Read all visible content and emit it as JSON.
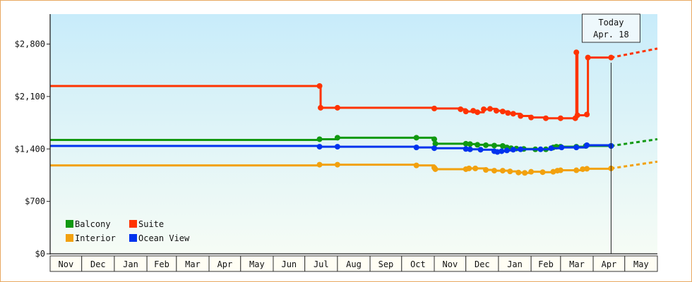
{
  "chart_data": {
    "type": "line",
    "x_type": "date",
    "y_ticks": [
      {
        "value": 0,
        "label": "$0"
      },
      {
        "value": 700,
        "label": "$700"
      },
      {
        "value": 1400,
        "label": "$1,400"
      },
      {
        "value": 2100,
        "label": "$2,100"
      },
      {
        "value": 2800,
        "label": "$2,800"
      }
    ],
    "ylim": [
      0,
      3200
    ],
    "xlim": [
      "2021-11-01",
      "2023-06-01"
    ],
    "x_tick_labels": [
      "Nov",
      "Dec",
      "Jan",
      "Feb",
      "Mar",
      "Apr",
      "May",
      "Jun",
      "Jul",
      "Aug",
      "Sep",
      "Oct",
      "Nov",
      "Dec",
      "Jan",
      "Feb",
      "Mar",
      "Apr",
      "May"
    ],
    "grid": false,
    "legend_position": "bottom-left",
    "today": {
      "date": "2023-04-18",
      "line1": "Today",
      "line2": "Apr. 18"
    },
    "series": [
      {
        "name": "Balcony",
        "color": "#119911",
        "points": [
          [
            "2021-11-01",
            1520
          ],
          [
            "2022-07-15",
            1530
          ],
          [
            "2022-08-01",
            1550
          ],
          [
            "2022-10-15",
            1550
          ],
          [
            "2022-11-01",
            1530
          ],
          [
            "2022-11-02",
            1470
          ],
          [
            "2022-12-01",
            1470
          ],
          [
            "2022-12-05",
            1465
          ],
          [
            "2022-12-12",
            1455
          ],
          [
            "2022-12-20",
            1450
          ],
          [
            "2022-12-28",
            1445
          ],
          [
            "2023-01-05",
            1440
          ],
          [
            "2023-01-09",
            1420
          ],
          [
            "2023-01-13",
            1410
          ],
          [
            "2023-01-18",
            1405
          ],
          [
            "2023-01-25",
            1400
          ],
          [
            "2023-02-05",
            1395
          ],
          [
            "2023-02-15",
            1395
          ],
          [
            "2023-02-22",
            1420
          ],
          [
            "2023-02-25",
            1430
          ],
          [
            "2023-03-01",
            1430
          ],
          [
            "2023-03-16",
            1430
          ],
          [
            "2023-03-25",
            1440
          ],
          [
            "2023-04-18",
            1440
          ]
        ],
        "forecast": [
          [
            "2023-04-18",
            1440
          ],
          [
            "2023-06-01",
            1530
          ]
        ]
      },
      {
        "name": "Suite",
        "color": "#ff3300",
        "points": [
          [
            "2021-11-01",
            2240
          ],
          [
            "2022-07-15",
            2240
          ],
          [
            "2022-07-16",
            1950
          ],
          [
            "2022-08-01",
            1950
          ],
          [
            "2022-11-01",
            1940
          ],
          [
            "2022-11-26",
            1930
          ],
          [
            "2022-12-01",
            1900
          ],
          [
            "2022-12-08",
            1910
          ],
          [
            "2022-12-12",
            1890
          ],
          [
            "2022-12-18",
            1930
          ],
          [
            "2022-12-24",
            1935
          ],
          [
            "2022-12-30",
            1910
          ],
          [
            "2023-01-05",
            1900
          ],
          [
            "2023-01-10",
            1880
          ],
          [
            "2023-01-15",
            1870
          ],
          [
            "2023-01-22",
            1840
          ],
          [
            "2023-02-01",
            1820
          ],
          [
            "2023-02-15",
            1810
          ],
          [
            "2023-03-01",
            1810
          ],
          [
            "2023-03-15",
            1810
          ],
          [
            "2023-03-16",
            2690
          ],
          [
            "2023-03-17",
            1850
          ],
          [
            "2023-03-26",
            1860
          ],
          [
            "2023-03-27",
            2620
          ],
          [
            "2023-04-18",
            2620
          ]
        ],
        "forecast": [
          [
            "2023-04-18",
            2620
          ],
          [
            "2023-06-01",
            2740
          ]
        ]
      },
      {
        "name": "Interior",
        "color": "#f2a10e",
        "points": [
          [
            "2021-11-01",
            1180
          ],
          [
            "2022-07-15",
            1190
          ],
          [
            "2022-08-01",
            1190
          ],
          [
            "2022-10-15",
            1180
          ],
          [
            "2022-11-01",
            1150
          ],
          [
            "2022-11-02",
            1130
          ],
          [
            "2022-12-01",
            1130
          ],
          [
            "2022-12-04",
            1140
          ],
          [
            "2022-12-10",
            1140
          ],
          [
            "2022-12-20",
            1120
          ],
          [
            "2022-12-28",
            1110
          ],
          [
            "2023-01-05",
            1110
          ],
          [
            "2023-01-12",
            1100
          ],
          [
            "2023-01-20",
            1085
          ],
          [
            "2023-01-26",
            1080
          ],
          [
            "2023-02-01",
            1095
          ],
          [
            "2023-02-12",
            1090
          ],
          [
            "2023-02-22",
            1095
          ],
          [
            "2023-02-26",
            1110
          ],
          [
            "2023-03-01",
            1115
          ],
          [
            "2023-03-16",
            1115
          ],
          [
            "2023-03-22",
            1130
          ],
          [
            "2023-03-26",
            1135
          ],
          [
            "2023-04-18",
            1140
          ]
        ],
        "forecast": [
          [
            "2023-04-18",
            1140
          ],
          [
            "2023-06-01",
            1230
          ]
        ]
      },
      {
        "name": "Ocean View",
        "color": "#0033ee",
        "points": [
          [
            "2021-11-01",
            1440
          ],
          [
            "2022-07-15",
            1430
          ],
          [
            "2022-08-01",
            1430
          ],
          [
            "2022-10-15",
            1420
          ],
          [
            "2022-11-01",
            1410
          ],
          [
            "2022-12-01",
            1400
          ],
          [
            "2022-12-05",
            1395
          ],
          [
            "2022-12-15",
            1390
          ],
          [
            "2022-12-28",
            1370
          ],
          [
            "2022-12-31",
            1360
          ],
          [
            "2023-01-04",
            1370
          ],
          [
            "2023-01-09",
            1380
          ],
          [
            "2023-01-15",
            1390
          ],
          [
            "2023-01-22",
            1395
          ],
          [
            "2023-02-10",
            1395
          ],
          [
            "2023-02-20",
            1410
          ],
          [
            "2023-03-02",
            1420
          ],
          [
            "2023-03-16",
            1420
          ],
          [
            "2023-03-26",
            1450
          ],
          [
            "2023-04-18",
            1440
          ]
        ],
        "forecast": []
      }
    ]
  }
}
